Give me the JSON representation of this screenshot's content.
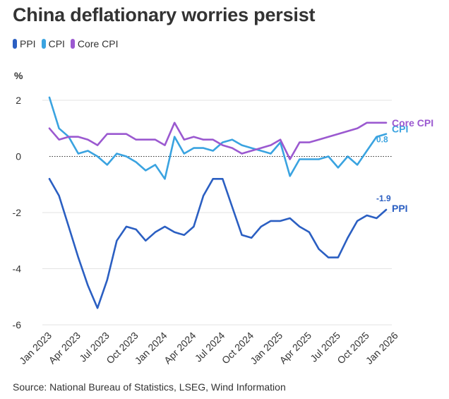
{
  "title": "China deflationary worries persist",
  "legend": [
    {
      "label": "PPI",
      "color": "#2b5fc2"
    },
    {
      "label": "CPI",
      "color": "#3aa3e0"
    },
    {
      "label": "Core CPI",
      "color": "#9b59d0"
    }
  ],
  "source": "Source: National Bureau of Statistics, LSEG, Wind Information",
  "chart_data": {
    "type": "line",
    "title": "China deflationary worries persist",
    "ylabel": "%",
    "xlabel": "",
    "ylim": [
      -6,
      2
    ],
    "yticks": [
      2,
      0,
      -2,
      -4,
      -6
    ],
    "ytick_labels": [
      "2",
      "0",
      "-2",
      "-4",
      "-6"
    ],
    "x_tick_labels": [
      "Jan 2023",
      "Apr 2023",
      "Jul 2023",
      "Oct 2023",
      "Jan 2024",
      "Apr 2024",
      "Jul 2024",
      "Oct 2024",
      "Jan 2025",
      "Apr 2025",
      "Jul 2025",
      "Oct 2025",
      "Jan 2026"
    ],
    "zero_line": "dotted",
    "series": [
      {
        "name": "PPI",
        "color": "#2b5fc2",
        "end_label": "PPI",
        "end_value_label": "-1.9",
        "values": [
          -0.8,
          -1.4,
          -2.5,
          -3.6,
          -4.6,
          -5.4,
          -4.4,
          -3.0,
          -2.5,
          -2.6,
          -3.0,
          -2.7,
          -2.5,
          -2.7,
          -2.8,
          -2.5,
          -1.4,
          -0.8,
          -0.8,
          -1.8,
          -2.8,
          -2.9,
          -2.5,
          -2.3,
          -2.3,
          -2.2,
          -2.5,
          -2.7,
          -3.3,
          -3.6,
          -3.6,
          -2.9,
          -2.3,
          -2.1,
          -2.2,
          -1.9
        ]
      },
      {
        "name": "CPI",
        "color": "#3aa3e0",
        "end_label": "CPI",
        "end_value_label": "0.8",
        "values": [
          2.1,
          1.0,
          0.7,
          0.1,
          0.2,
          0.0,
          -0.3,
          0.1,
          0.0,
          -0.2,
          -0.5,
          -0.3,
          -0.8,
          0.7,
          0.1,
          0.3,
          0.3,
          0.2,
          0.5,
          0.6,
          0.4,
          0.3,
          0.2,
          0.1,
          0.5,
          -0.7,
          -0.1,
          -0.1,
          -0.1,
          0.0,
          -0.4,
          0.0,
          -0.3,
          0.2,
          0.7,
          0.8
        ]
      },
      {
        "name": "Core CPI",
        "color": "#9b59d0",
        "end_label": "Core CPI",
        "values": [
          1.0,
          0.6,
          0.7,
          0.7,
          0.6,
          0.4,
          0.8,
          0.8,
          0.8,
          0.6,
          0.6,
          0.6,
          0.4,
          1.2,
          0.6,
          0.7,
          0.6,
          0.6,
          0.4,
          0.3,
          0.1,
          0.2,
          0.3,
          0.4,
          0.6,
          -0.1,
          0.5,
          0.5,
          0.6,
          0.7,
          0.8,
          0.9,
          1.0,
          1.2,
          1.2,
          1.2
        ]
      }
    ]
  }
}
